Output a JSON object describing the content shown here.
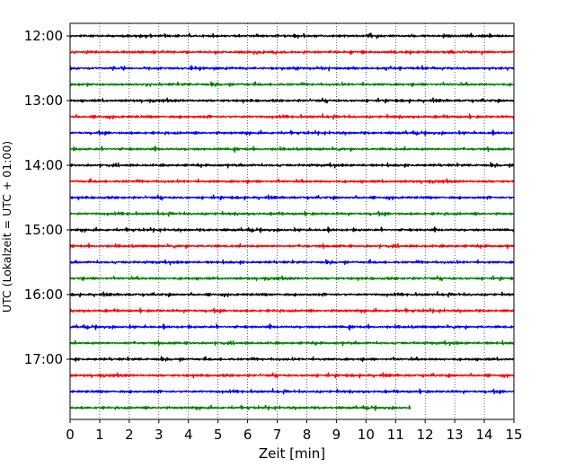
{
  "chart_data": {
    "type": "line",
    "title": "",
    "xlabel": "Zeit  [min]",
    "ylabel": "UTC (Lokalzeit = UTC + 01:00)",
    "xlim": [
      0,
      15
    ],
    "x_ticks": [
      "0",
      "1",
      "2",
      "3",
      "4",
      "5",
      "6",
      "7",
      "8",
      "9",
      "10",
      "11",
      "12",
      "13",
      "14",
      "15"
    ],
    "y_ticks": [
      "12:00",
      "13:00",
      "14:00",
      "15:00",
      "16:00",
      "17:00"
    ],
    "grid": "vertical-dotted",
    "trace_interval_min": 15,
    "trace_colors": [
      "#000000",
      "#ff0000",
      "#0000ff",
      "#008000"
    ],
    "traces": [
      {
        "start": "12:00",
        "duration_min": 15,
        "color": "#000000"
      },
      {
        "start": "12:15",
        "duration_min": 15,
        "color": "#ff0000"
      },
      {
        "start": "12:30",
        "duration_min": 15,
        "color": "#0000ff"
      },
      {
        "start": "12:45",
        "duration_min": 15,
        "color": "#008000"
      },
      {
        "start": "13:00",
        "duration_min": 15,
        "color": "#000000"
      },
      {
        "start": "13:15",
        "duration_min": 15,
        "color": "#ff0000"
      },
      {
        "start": "13:30",
        "duration_min": 15,
        "color": "#0000ff"
      },
      {
        "start": "13:45",
        "duration_min": 15,
        "color": "#008000"
      },
      {
        "start": "14:00",
        "duration_min": 15,
        "color": "#000000"
      },
      {
        "start": "14:15",
        "duration_min": 15,
        "color": "#ff0000"
      },
      {
        "start": "14:30",
        "duration_min": 15,
        "color": "#0000ff"
      },
      {
        "start": "14:45",
        "duration_min": 15,
        "color": "#008000"
      },
      {
        "start": "15:00",
        "duration_min": 15,
        "color": "#000000"
      },
      {
        "start": "15:15",
        "duration_min": 15,
        "color": "#ff0000"
      },
      {
        "start": "15:30",
        "duration_min": 15,
        "color": "#0000ff"
      },
      {
        "start": "15:45",
        "duration_min": 15,
        "color": "#008000"
      },
      {
        "start": "16:00",
        "duration_min": 15,
        "color": "#000000"
      },
      {
        "start": "16:15",
        "duration_min": 15,
        "color": "#ff0000"
      },
      {
        "start": "16:30",
        "duration_min": 15,
        "color": "#0000ff"
      },
      {
        "start": "16:45",
        "duration_min": 15,
        "color": "#008000"
      },
      {
        "start": "17:00",
        "duration_min": 15,
        "color": "#000000"
      },
      {
        "start": "17:15",
        "duration_min": 15,
        "color": "#ff0000"
      },
      {
        "start": "17:30",
        "duration_min": 15,
        "color": "#0000ff"
      },
      {
        "start": "17:45",
        "duration_min": 11.5,
        "color": "#008000"
      }
    ]
  }
}
